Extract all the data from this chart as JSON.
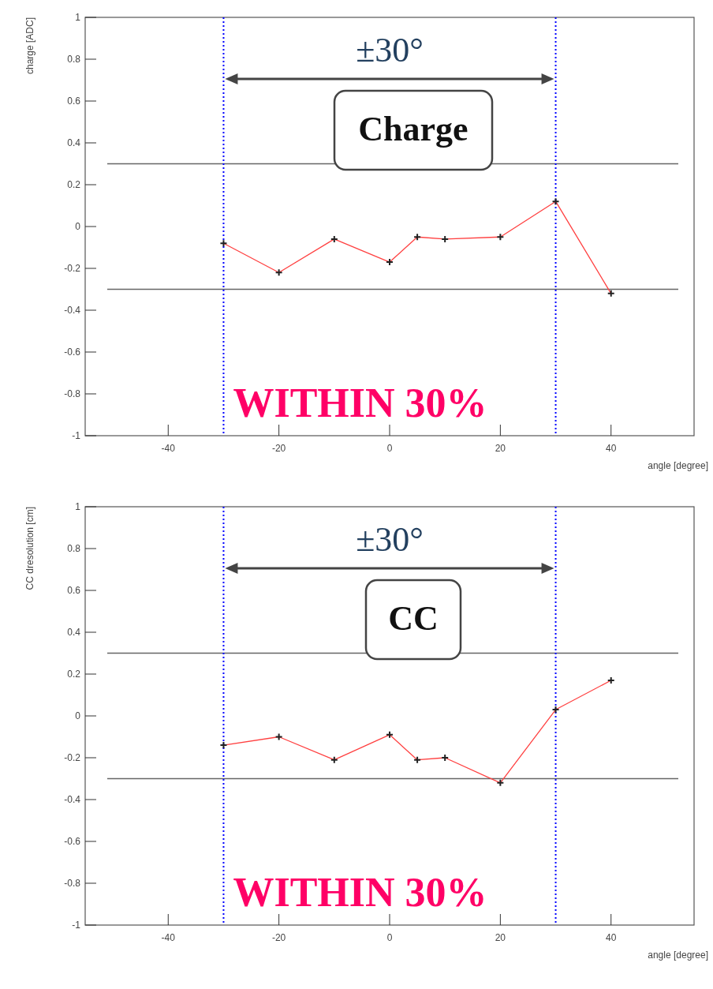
{
  "chart_data": [
    {
      "type": "line",
      "ylabel": "charge [ADC]",
      "xlabel": "angle [degree]",
      "x": [
        -30,
        -20,
        -10,
        0,
        5,
        10,
        20,
        30,
        40
      ],
      "series": [
        {
          "color": "#ff4040",
          "values": [
            -0.08,
            -0.22,
            -0.06,
            -0.17,
            -0.05,
            -0.06,
            -0.05,
            0.12,
            -0.32
          ]
        }
      ],
      "xlim": [
        -55,
        55
      ],
      "xticks": [
        -40,
        -20,
        0,
        20,
        40
      ],
      "ylim": [
        -1,
        1
      ],
      "yticks": [
        -1,
        -0.8,
        -0.6,
        -0.4,
        -0.2,
        0,
        0.2,
        0.4,
        0.6,
        0.8,
        1
      ],
      "marker": "cross",
      "ref_lines": [
        {
          "axis": "y",
          "value": 0.3,
          "color": "#666666"
        },
        {
          "axis": "y",
          "value": -0.3,
          "color": "#666666"
        },
        {
          "axis": "x",
          "value": -30,
          "color": "#0000ff",
          "line_style": "dotted"
        },
        {
          "axis": "x",
          "value": 30,
          "color": "#0000ff",
          "line_style": "dotted"
        }
      ],
      "annotations": [
        "±30°",
        "Charge",
        "WITHIN 30%"
      ]
    },
    {
      "type": "line",
      "ylabel": "CC dresolution [cm]",
      "xlabel": "angle [degree]",
      "x": [
        -30,
        -20,
        -10,
        0,
        5,
        10,
        20,
        30,
        40
      ],
      "series": [
        {
          "color": "#ff4040",
          "values": [
            -0.14,
            -0.1,
            -0.21,
            -0.09,
            -0.21,
            -0.2,
            -0.32,
            0.03,
            0.17
          ]
        }
      ],
      "xlim": [
        -55,
        55
      ],
      "xticks": [
        -40,
        -20,
        0,
        20,
        40
      ],
      "ylim": [
        -1,
        1
      ],
      "yticks": [
        -1,
        -0.8,
        -0.6,
        -0.4,
        -0.2,
        0,
        0.2,
        0.4,
        0.6,
        0.8,
        1
      ],
      "marker": "cross",
      "ref_lines": [
        {
          "axis": "y",
          "value": 0.3,
          "color": "#666666"
        },
        {
          "axis": "y",
          "value": -0.3,
          "color": "#666666"
        },
        {
          "axis": "x",
          "value": -30,
          "color": "#0000ff",
          "line_style": "dotted"
        },
        {
          "axis": "x",
          "value": 30,
          "color": "#0000ff",
          "line_style": "dotted"
        }
      ],
      "annotations": [
        "±30°",
        "CC",
        "WITHIN 30%"
      ]
    }
  ]
}
